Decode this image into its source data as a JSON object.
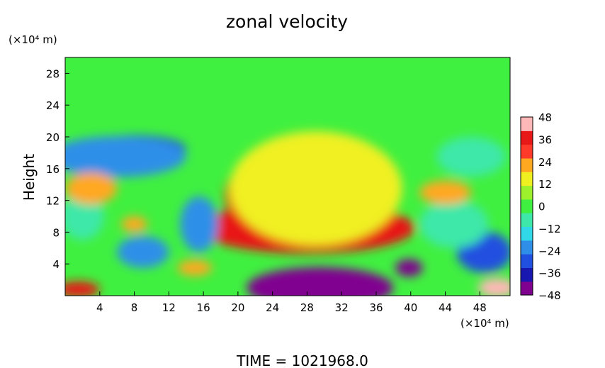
{
  "chart_data": {
    "type": "heatmap",
    "title": "zonal velocity",
    "ylabel": "Height",
    "y_unit": "(×10⁴ m)",
    "x_unit": "(×10⁴ m)",
    "footer": "TIME =  1021968.0",
    "xlim": [
      0,
      51.5
    ],
    "ylim": [
      0,
      30
    ],
    "x_ticks": [
      4,
      8,
      12,
      16,
      20,
      24,
      28,
      32,
      36,
      40,
      44,
      48
    ],
    "y_ticks": [
      4,
      8,
      12,
      16,
      20,
      24,
      28
    ],
    "colorbar": {
      "min": -48,
      "max": 48,
      "ticks": [
        48,
        36,
        24,
        12,
        0,
        -12,
        -24,
        -36,
        -48
      ],
      "colors": [
        "#800090",
        "#1818b0",
        "#2050e0",
        "#2f8fe8",
        "#30d8e8",
        "#3de8a8",
        "#40f040",
        "#9cf02c",
        "#f0f020",
        "#ffa820",
        "#ff3a2a",
        "#e81818",
        "#ffb8b8"
      ]
    },
    "background_value": 0,
    "features": [
      {
        "x": 27.5,
        "y": 10.5,
        "value": 48,
        "rx": 5.5,
        "ry": 3.8
      },
      {
        "x": 28.5,
        "y": 8.8,
        "value": 48,
        "rx": 8.5,
        "ry": 2.8
      },
      {
        "x": 27.5,
        "y": 12.5,
        "value": 36,
        "rx": 9,
        "ry": 6.5
      },
      {
        "x": 28,
        "y": 8.5,
        "value": 36,
        "rx": 12.5,
        "ry": 3.2
      },
      {
        "x": 29,
        "y": 13.5,
        "value": 12,
        "rx": 10,
        "ry": 7.2
      },
      {
        "x": 29.5,
        "y": 1.0,
        "value": -48,
        "rx": 8.5,
        "ry": 2.6
      },
      {
        "x": 8,
        "y": 18.5,
        "value": -36,
        "rx": 6,
        "ry": 1.7
      },
      {
        "x": 6,
        "y": 17.5,
        "value": -24,
        "rx": 8,
        "ry": 2.6
      },
      {
        "x": 15.5,
        "y": 9,
        "value": -24,
        "rx": 2.2,
        "ry": 3.5
      },
      {
        "x": 9,
        "y": 5.5,
        "value": -24,
        "rx": 3,
        "ry": 2
      },
      {
        "x": 39.8,
        "y": 3.5,
        "value": -48,
        "rx": 1.6,
        "ry": 1.1
      },
      {
        "x": 48.5,
        "y": 5.5,
        "value": -36,
        "rx": 3.2,
        "ry": 2.6
      },
      {
        "x": 47,
        "y": 17.5,
        "value": -12,
        "rx": 4,
        "ry": 2.5
      },
      {
        "x": 45,
        "y": 9,
        "value": -12,
        "rx": 4,
        "ry": 3
      },
      {
        "x": 2,
        "y": 10,
        "value": -12,
        "rx": 2.5,
        "ry": 3
      },
      {
        "x": 3,
        "y": 13.5,
        "value": 24,
        "rx": 3,
        "ry": 2
      },
      {
        "x": 1.5,
        "y": 0.8,
        "value": 36,
        "rx": 2.5,
        "ry": 1
      },
      {
        "x": 50,
        "y": 1.0,
        "value": 48,
        "rx": 2.2,
        "ry": 1.2
      },
      {
        "x": 15,
        "y": 3.5,
        "value": 24,
        "rx": 2,
        "ry": 1
      },
      {
        "x": 44,
        "y": 13,
        "value": 24,
        "rx": 3,
        "ry": 1.5
      },
      {
        "x": 8,
        "y": 9,
        "value": 24,
        "rx": 1.5,
        "ry": 1
      }
    ]
  }
}
